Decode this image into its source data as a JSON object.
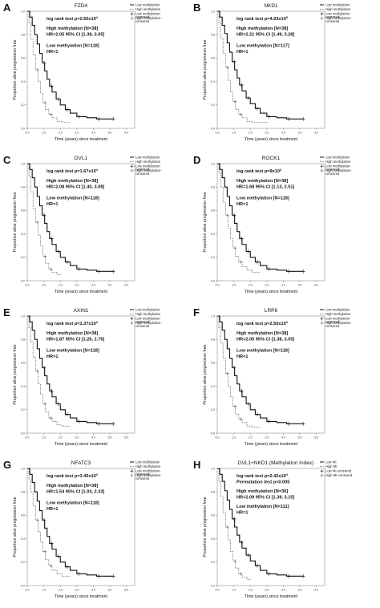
{
  "chart_data": [
    {
      "type": "line",
      "panel_letter": "A",
      "title": "FZD4",
      "ylabel": "Proportion alive progression free",
      "xlabel": "Time (years) since treatment",
      "x_ticks": [
        "0.0",
        "1.0",
        "2.0",
        "3.0",
        "4.0",
        "5.0",
        "6.0"
      ],
      "y_ticks": [
        "0.0",
        "0.2",
        "0.4",
        "0.6",
        "0.8",
        "1.0"
      ],
      "xlim": [
        0,
        6.5
      ],
      "ylim": [
        0,
        1.0
      ],
      "annotations": [
        "log rank test p=2.50x10⁴",
        "High methylation [N=38]",
        "HR=2.05 95% CI [1.38, 3.05]",
        "Low methylation [N=118]",
        "HR=1"
      ],
      "legend": [
        "Low methylation",
        "High methylation",
        "Low methylation-censored",
        "High methylation-censored"
      ],
      "series": [
        {
          "name": "Low methylation",
          "x": [
            0,
            0.15,
            0.3,
            0.45,
            0.6,
            0.75,
            0.9,
            1.05,
            1.2,
            1.35,
            1.5,
            1.75,
            2.0,
            2.3,
            2.6,
            3.0,
            3.6,
            4.2,
            5.2
          ],
          "y": [
            1.0,
            0.95,
            0.88,
            0.8,
            0.72,
            0.64,
            0.56,
            0.49,
            0.42,
            0.36,
            0.31,
            0.25,
            0.2,
            0.16,
            0.13,
            0.1,
            0.09,
            0.08,
            0.08
          ]
        },
        {
          "name": "High methylation",
          "x": [
            0,
            0.1,
            0.2,
            0.35,
            0.5,
            0.65,
            0.8,
            0.95,
            1.1,
            1.3,
            1.5,
            1.8,
            2.1,
            2.6
          ],
          "y": [
            1.0,
            0.9,
            0.76,
            0.63,
            0.5,
            0.4,
            0.3,
            0.22,
            0.16,
            0.12,
            0.09,
            0.06,
            0.05,
            0.05
          ]
        }
      ]
    },
    {
      "type": "line",
      "panel_letter": "B",
      "title": "NKD1",
      "ylabel": "Proportion alive progression free",
      "xlabel": "Time (years) since treatment",
      "x_ticks": [
        "0.0",
        "1.0",
        "2.0",
        "3.0",
        "4.0",
        "5.0",
        "6.0"
      ],
      "y_ticks": [
        "0.0",
        "0.2",
        "0.4",
        "0.6",
        "0.8",
        "1.0"
      ],
      "xlim": [
        0,
        6.5
      ],
      "ylim": [
        0,
        1.0
      ],
      "annotations": [
        "log rank test p=4.93x10⁵",
        "High methylation [N=38]",
        "HR=2.21 95% CI [1.49, 3.28]",
        "Low methylation [N=117]",
        "HR=1"
      ],
      "legend": [
        "Low methylation",
        "High methylation",
        "Low methylation-censored",
        "High methylation-censored"
      ],
      "series": [
        {
          "name": "Low methylation",
          "x": [
            0,
            0.15,
            0.3,
            0.45,
            0.6,
            0.75,
            0.9,
            1.05,
            1.2,
            1.35,
            1.5,
            1.75,
            2.0,
            2.3,
            2.6,
            3.0,
            3.6,
            4.2,
            5.2
          ],
          "y": [
            1.0,
            0.95,
            0.88,
            0.81,
            0.73,
            0.65,
            0.57,
            0.5,
            0.43,
            0.37,
            0.32,
            0.26,
            0.21,
            0.17,
            0.13,
            0.1,
            0.09,
            0.08,
            0.08
          ]
        },
        {
          "name": "High methylation",
          "x": [
            0,
            0.1,
            0.2,
            0.35,
            0.5,
            0.65,
            0.8,
            0.95,
            1.1,
            1.3,
            1.5,
            1.8,
            2.1,
            2.6,
            3.1
          ],
          "y": [
            1.0,
            0.9,
            0.77,
            0.64,
            0.52,
            0.41,
            0.31,
            0.23,
            0.16,
            0.12,
            0.09,
            0.06,
            0.05,
            0.05,
            0.05
          ]
        }
      ]
    },
    {
      "type": "line",
      "panel_letter": "C",
      "title": "DVL1",
      "ylabel": "Proportion alive progression free",
      "xlabel": "Time (years) since treatment",
      "x_ticks": [
        "0.0",
        "1.0",
        "2.0",
        "3.0",
        "4.0",
        "5.0",
        "6.0"
      ],
      "y_ticks": [
        "0.0",
        "0.2",
        "0.4",
        "0.6",
        "0.8",
        "1.0"
      ],
      "xlim": [
        0,
        6.5
      ],
      "ylim": [
        0,
        1.0
      ],
      "annotations": [
        "log rank test p=1.67x10⁴",
        "High methylation [N=38]",
        "HR=2.08 95% CI [1.40, 3.08]",
        "Low methylation [N=118]",
        "HR=1"
      ],
      "legend": [
        "Low methylation",
        "High methylation",
        "Low methylation-censored",
        "High methylation-censored"
      ],
      "series": [
        {
          "name": "Low methylation",
          "x": [
            0,
            0.15,
            0.3,
            0.45,
            0.6,
            0.75,
            0.9,
            1.05,
            1.2,
            1.35,
            1.5,
            1.75,
            2.0,
            2.3,
            2.6,
            3.0,
            3.6,
            4.2,
            5.2
          ],
          "y": [
            1.0,
            0.95,
            0.88,
            0.8,
            0.72,
            0.64,
            0.56,
            0.49,
            0.42,
            0.36,
            0.31,
            0.25,
            0.2,
            0.16,
            0.13,
            0.1,
            0.09,
            0.08,
            0.08
          ]
        },
        {
          "name": "High methylation",
          "x": [
            0,
            0.1,
            0.2,
            0.35,
            0.5,
            0.65,
            0.8,
            0.95,
            1.1,
            1.3,
            1.5,
            1.8,
            2.1
          ],
          "y": [
            1.0,
            0.89,
            0.76,
            0.62,
            0.5,
            0.39,
            0.3,
            0.21,
            0.15,
            0.1,
            0.07,
            0.05,
            0.05
          ]
        }
      ]
    },
    {
      "type": "line",
      "panel_letter": "D",
      "title": "ROCK1",
      "ylabel": "Proportion alive progression free",
      "xlabel": "Time (years) since treatment",
      "x_ticks": [
        "0.0",
        "1.0",
        "2.0",
        "3.0",
        "4.0",
        "5.0",
        "6.0"
      ],
      "y_ticks": [
        "0.0",
        "0.2",
        "0.4",
        "0.6",
        "0.8",
        "1.0"
      ],
      "xlim": [
        0,
        6.5
      ],
      "ylim": [
        0,
        1.0
      ],
      "annotations": [
        "log rank test p=9x10³",
        "High methylation [N=38]",
        "HR=1.68 95% CI [1.13, 2.51]",
        "Low methylation [N=118]",
        "HR=1"
      ],
      "legend": [
        "Low methylation",
        "High methylation",
        "Low methylation-censored",
        "High methylation-censored"
      ],
      "series": [
        {
          "name": "Low methylation",
          "x": [
            0,
            0.15,
            0.3,
            0.45,
            0.6,
            0.75,
            0.9,
            1.05,
            1.2,
            1.35,
            1.5,
            1.75,
            2.0,
            2.3,
            2.6,
            3.0,
            3.6,
            4.2,
            5.2
          ],
          "y": [
            1.0,
            0.95,
            0.88,
            0.8,
            0.72,
            0.64,
            0.56,
            0.49,
            0.42,
            0.36,
            0.31,
            0.25,
            0.2,
            0.16,
            0.13,
            0.1,
            0.09,
            0.08,
            0.08
          ]
        },
        {
          "name": "High methylation",
          "x": [
            0,
            0.1,
            0.2,
            0.35,
            0.5,
            0.65,
            0.8,
            0.95,
            1.1,
            1.3,
            1.5,
            1.8,
            2.1,
            2.6
          ],
          "y": [
            1.0,
            0.92,
            0.8,
            0.67,
            0.56,
            0.45,
            0.36,
            0.28,
            0.21,
            0.16,
            0.12,
            0.09,
            0.07,
            0.07
          ]
        }
      ]
    },
    {
      "type": "line",
      "panel_letter": "E",
      "title": "AXIN1",
      "ylabel": "Proportion alive progression free",
      "xlabel": "Time (years) since treatment",
      "x_ticks": [
        "0.0",
        "1.0",
        "2.0",
        "3.0",
        "4.0",
        "5.0",
        "6.0"
      ],
      "y_ticks": [
        "0.0",
        "0.2",
        "0.4",
        "0.6",
        "0.8",
        "1.0"
      ],
      "xlim": [
        0,
        6.5
      ],
      "ylim": [
        0,
        1.0
      ],
      "annotations": [
        "log rank test p=1.37x10³",
        "High methylation [N=38]",
        "HR=1.87 95% CI [1.26, 2.76]",
        "Low methylation [N=118]",
        "HR=1"
      ],
      "legend": [
        "Low methylation",
        "High methylation",
        "Low methylation-censored",
        "High methylation-censored"
      ],
      "series": [
        {
          "name": "Low methylation",
          "x": [
            0,
            0.15,
            0.3,
            0.45,
            0.6,
            0.75,
            0.9,
            1.05,
            1.2,
            1.35,
            1.5,
            1.75,
            2.0,
            2.3,
            2.6,
            3.0,
            3.6,
            4.2,
            5.2
          ],
          "y": [
            1.0,
            0.95,
            0.88,
            0.8,
            0.72,
            0.64,
            0.56,
            0.49,
            0.42,
            0.36,
            0.31,
            0.25,
            0.2,
            0.16,
            0.13,
            0.1,
            0.09,
            0.08,
            0.08
          ]
        },
        {
          "name": "High methylation",
          "x": [
            0,
            0.1,
            0.2,
            0.35,
            0.5,
            0.65,
            0.8,
            0.95,
            1.1,
            1.3,
            1.5,
            1.8,
            2.1,
            2.6
          ],
          "y": [
            1.0,
            0.9,
            0.78,
            0.65,
            0.53,
            0.42,
            0.33,
            0.25,
            0.18,
            0.13,
            0.1,
            0.07,
            0.06,
            0.06
          ]
        }
      ]
    },
    {
      "type": "line",
      "panel_letter": "F",
      "title": "LRP6",
      "ylabel": "Proportion alive progression free",
      "xlabel": "Time (years) since treatment",
      "x_ticks": [
        "0.0",
        "1.0",
        "2.0",
        "3.0",
        "4.0",
        "5.0",
        "6.0"
      ],
      "y_ticks": [
        "0.0",
        "0.2",
        "0.4",
        "0.6",
        "0.8",
        "1.0"
      ],
      "xlim": [
        0,
        6.5
      ],
      "ylim": [
        0,
        1.0
      ],
      "annotations": [
        "log rank test p=2.50x10⁴",
        "High methylation [N=38]",
        "HR=2.05 95% CI [1.38, 3.05]",
        "Low methylation [N=118]",
        "HR=1"
      ],
      "legend": [
        "Low methylation",
        "High methylation",
        "Low methylation-censored",
        "High methylation-censored"
      ],
      "series": [
        {
          "name": "Low methylation",
          "x": [
            0,
            0.15,
            0.3,
            0.45,
            0.6,
            0.75,
            0.9,
            1.05,
            1.2,
            1.35,
            1.5,
            1.75,
            2.0,
            2.3,
            2.6,
            3.0,
            3.6,
            4.2,
            5.2
          ],
          "y": [
            1.0,
            0.95,
            0.88,
            0.8,
            0.72,
            0.64,
            0.56,
            0.49,
            0.42,
            0.36,
            0.31,
            0.25,
            0.2,
            0.16,
            0.13,
            0.1,
            0.09,
            0.08,
            0.08
          ]
        },
        {
          "name": "High methylation",
          "x": [
            0,
            0.1,
            0.2,
            0.35,
            0.5,
            0.65,
            0.8,
            0.95,
            1.1,
            1.3,
            1.5,
            1.8,
            2.1,
            2.6
          ],
          "y": [
            1.0,
            0.9,
            0.77,
            0.64,
            0.51,
            0.4,
            0.31,
            0.23,
            0.16,
            0.12,
            0.09,
            0.06,
            0.05,
            0.05
          ]
        }
      ]
    },
    {
      "type": "line",
      "panel_letter": "G",
      "title": "NFATC3",
      "ylabel": "Proportion alive progression free",
      "xlabel": "Time (years) since treatment",
      "x_ticks": [
        "0.0",
        "1.0",
        "2.0",
        "3.0",
        "4.0",
        "5.0",
        "6.0"
      ],
      "y_ticks": [
        "0.0",
        "0.2",
        "0.4",
        "0.6",
        "0.8",
        "1.0"
      ],
      "xlim": [
        0,
        6.5
      ],
      "ylim": [
        0,
        1.0
      ],
      "annotations": [
        "log rank test p=3.45x10³",
        "High methylation [N=38]",
        "HR=1.54 95% CI [1.03, 2.33]",
        "Low methylation [N=118]",
        "HR=1"
      ],
      "legend": [
        "Low methylation",
        "High methylation",
        "Low methylation-censored",
        "High methylation-censored"
      ],
      "series": [
        {
          "name": "Low methylation",
          "x": [
            0,
            0.15,
            0.3,
            0.45,
            0.6,
            0.75,
            0.9,
            1.05,
            1.2,
            1.35,
            1.5,
            1.75,
            2.0,
            2.3,
            2.6,
            3.0,
            3.6,
            4.2,
            5.2
          ],
          "y": [
            1.0,
            0.95,
            0.88,
            0.8,
            0.72,
            0.64,
            0.56,
            0.49,
            0.42,
            0.36,
            0.31,
            0.25,
            0.2,
            0.16,
            0.13,
            0.1,
            0.09,
            0.08,
            0.08
          ]
        },
        {
          "name": "High methylation",
          "x": [
            0,
            0.1,
            0.2,
            0.35,
            0.5,
            0.65,
            0.8,
            0.95,
            1.1,
            1.3,
            1.5,
            1.8,
            2.1,
            2.6
          ],
          "y": [
            1.0,
            0.91,
            0.8,
            0.68,
            0.56,
            0.46,
            0.37,
            0.29,
            0.22,
            0.17,
            0.13,
            0.1,
            0.08,
            0.08
          ]
        }
      ]
    },
    {
      "type": "line",
      "panel_letter": "H",
      "title": "DVL1+NKD1 (Methylation Index)",
      "ylabel": "Proportion alive progression free",
      "xlabel": "Time (years) since treatment",
      "x_ticks": [
        "0.0",
        "1.0",
        "2.0",
        "3.0",
        "4.0",
        "5.0",
        "6.0"
      ],
      "y_ticks": [
        "0.0",
        "0.2",
        "0.4",
        "0.6",
        "0.8",
        "1.0"
      ],
      "xlim": [
        0,
        6.5
      ],
      "ylim": [
        0,
        1.0
      ],
      "annotations": [
        "log rank test p=2.42x10⁴",
        "Permutation test p<0.005",
        "High methylation [N=36]",
        "HR=2.09 95% CI [1.39, 3.15]",
        "Low methylation [N=111]",
        "HR=1"
      ],
      "legend": [
        "Low MI",
        "High MI",
        "Low MI-censored",
        "High MI-censored"
      ],
      "series": [
        {
          "name": "Low MI",
          "x": [
            0,
            0.15,
            0.3,
            0.45,
            0.6,
            0.75,
            0.9,
            1.05,
            1.2,
            1.35,
            1.5,
            1.75,
            2.0,
            2.3,
            2.6,
            3.0,
            3.6,
            4.2,
            5.2
          ],
          "y": [
            1.0,
            0.95,
            0.89,
            0.81,
            0.73,
            0.65,
            0.57,
            0.5,
            0.43,
            0.37,
            0.32,
            0.26,
            0.21,
            0.17,
            0.13,
            0.1,
            0.09,
            0.08,
            0.08
          ]
        },
        {
          "name": "High MI",
          "x": [
            0,
            0.1,
            0.2,
            0.35,
            0.5,
            0.65,
            0.8,
            0.95,
            1.1,
            1.3,
            1.5,
            1.8,
            2.1
          ],
          "y": [
            1.0,
            0.89,
            0.76,
            0.62,
            0.5,
            0.39,
            0.29,
            0.21,
            0.15,
            0.1,
            0.07,
            0.05,
            0.05
          ]
        }
      ]
    }
  ]
}
